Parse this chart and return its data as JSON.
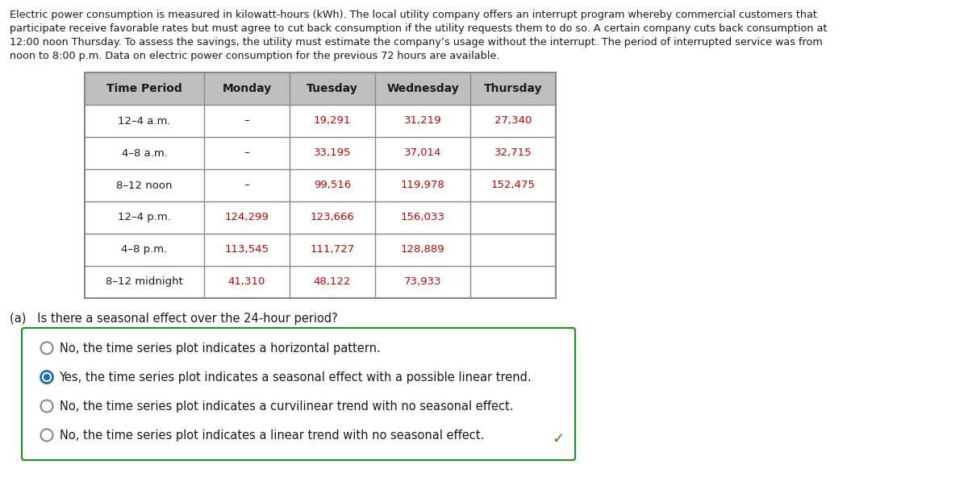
{
  "paragraph_lines": [
    "Electric power consumption is measured in kilowatt-hours (kWh). The local utility company offers an interrupt program whereby commercial customers that",
    "participate receive favorable rates but must agree to cut back consumption if the utility requests them to do so. A certain company cuts back consumption at",
    "12:00 noon Thursday. To assess the savings, the utility must estimate the company’s usage without the interrupt. The period of interrupted service was from",
    "noon to 8:00 p.m. Data on electric power consumption for the previous 72 hours are available."
  ],
  "table_headers": [
    "Time Period",
    "Monday",
    "Tuesday",
    "Wednesday",
    "Thursday"
  ],
  "table_rows": [
    [
      "12–4 a.m.",
      "–",
      "19,291",
      "31,219",
      "27,340"
    ],
    [
      "4–8 a.m.",
      "–",
      "33,195",
      "37,014",
      "32,715"
    ],
    [
      "8–12 noon",
      "–",
      "99,516",
      "119,978",
      "152,475"
    ],
    [
      "12–4 p.m.",
      "124,299",
      "123,666",
      "156,033",
      ""
    ],
    [
      "4–8 p.m.",
      "113,545",
      "111,727",
      "128,889",
      ""
    ],
    [
      "8–12 midnight",
      "41,310",
      "48,122",
      "73,933",
      ""
    ]
  ],
  "red_color": "#cc0000",
  "black_color": "#1a1a1a",
  "header_bg": "#bfbfbf",
  "table_border_color": "#888888",
  "question_label": "(a)   Is there a seasonal effect over the 24-hour period?",
  "options": [
    "No, the time series plot indicates a horizontal pattern.",
    "Yes, the time series plot indicates a seasonal effect with a possible linear trend.",
    "No, the time series plot indicates a curvilinear trend with no seasonal effect.",
    "No, the time series plot indicates a linear trend with no seasonal effect."
  ],
  "selected_option": 1,
  "check_color": "#228B22",
  "box_border_color": "#228B22",
  "selected_radio_outer": "#1a6faf",
  "selected_radio_inner": "#1a6faf",
  "unselected_radio_color": "#888888",
  "font_size_para": 9.2,
  "font_size_table": 9.5,
  "font_size_header": 10.0,
  "font_size_question": 10.5,
  "font_size_options": 10.5
}
